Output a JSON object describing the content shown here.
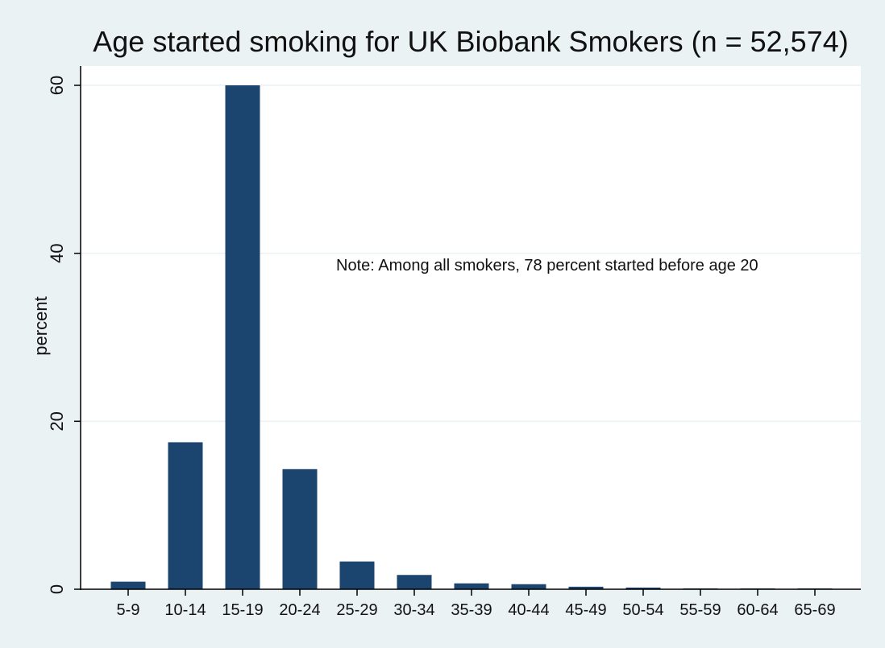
{
  "chart_data": {
    "type": "bar",
    "title": "Age started smoking for UK Biobank Smokers (n = 52,574)",
    "xlabel": "",
    "ylabel": "percent",
    "categories": [
      "5-9",
      "10-14",
      "15-19",
      "20-24",
      "25-29",
      "30-34",
      "35-39",
      "40-44",
      "45-49",
      "50-54",
      "55-59",
      "60-64",
      "65-69"
    ],
    "values": [
      0.9,
      17.5,
      60.0,
      14.3,
      3.3,
      1.7,
      0.7,
      0.6,
      0.3,
      0.2,
      0.1,
      0.1,
      0.1
    ],
    "ylim": [
      0,
      60
    ],
    "yticks": [
      0,
      20,
      40,
      60
    ],
    "grid": true,
    "annotation": "Note: Among all smokers, 78 percent started before age 20",
    "colors": {
      "bar": "#1b456e",
      "background": "#eaf2f3",
      "plot_background": "#ffffff",
      "grid": "#eaf2f3",
      "axis": "#000000"
    }
  }
}
